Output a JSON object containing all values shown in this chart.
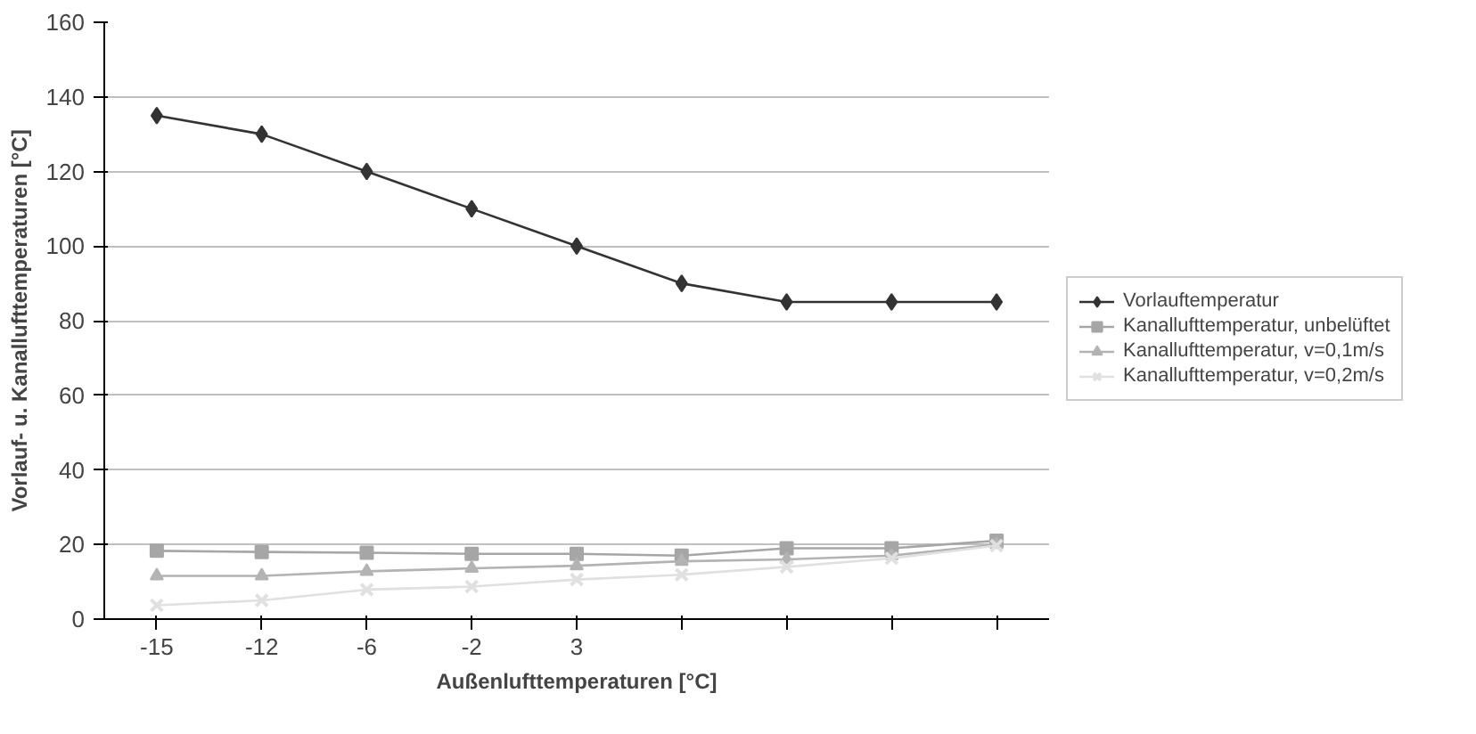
{
  "chart_data": {
    "type": "line",
    "xlabel": "Außenlufttemperaturen [°C]",
    "ylabel": "Vorlauf- u. Kanallufttemperaturen [°C]",
    "categories": [
      "-15",
      "-12",
      "-6",
      "-2",
      "3",
      null,
      null,
      null,
      null
    ],
    "ylim": [
      0,
      160
    ],
    "yticks": [
      0,
      20,
      40,
      60,
      80,
      100,
      120,
      140,
      160
    ],
    "grid": "y",
    "legend": "right",
    "series": [
      {
        "name": "Vorlauftemperatur",
        "color": "#333333",
        "marker": "diamond",
        "values": [
          135,
          130,
          120,
          110,
          100,
          90,
          85,
          85,
          85
        ]
      },
      {
        "name": "Kanallufttemperatur, unbelüftet",
        "color": "#a6a6a6",
        "marker": "square",
        "values": [
          18.3,
          18,
          17.8,
          17.5,
          17.5,
          17,
          19,
          19,
          21
        ]
      },
      {
        "name": "Kanallufttemperatur, v=0,1m/s",
        "color": "#b3b3b3",
        "marker": "triangle",
        "values": [
          11.6,
          11.6,
          12.8,
          13.6,
          14.3,
          15.5,
          16,
          17,
          20
        ]
      },
      {
        "name": "Kanallufttemperatur, v=0,2m/s",
        "color": "#e0e0e0",
        "marker": "cross",
        "values": [
          3.7,
          5,
          7.9,
          8.7,
          10.6,
          11.9,
          14,
          16.3,
          19.7
        ]
      }
    ]
  }
}
